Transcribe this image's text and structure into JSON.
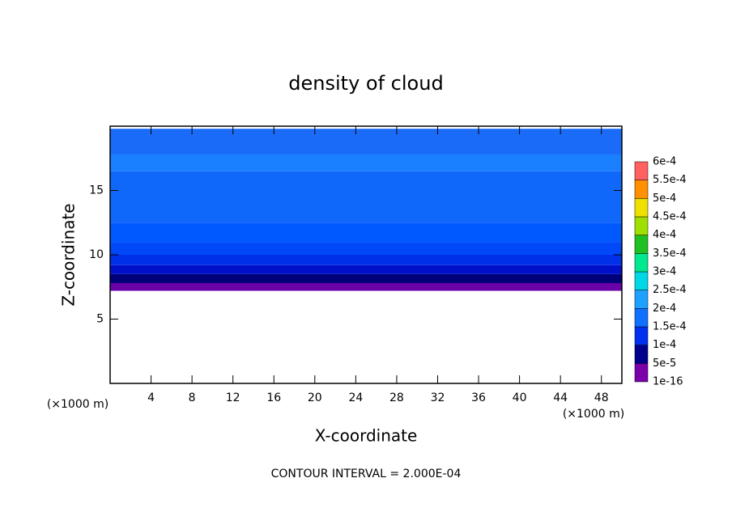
{
  "chart_data": {
    "type": "contour",
    "title": "density of cloud",
    "xlabel": "X-coordinate",
    "ylabel": "Z-coordinate",
    "x_unit": "(×1000 m)",
    "y_unit": "(×1000 m)",
    "annotation": "CONTOUR INTERVAL = 2.000E-04",
    "xlim": [
      0,
      50
    ],
    "ylim": [
      0,
      20
    ],
    "xticks": [
      4,
      8,
      12,
      16,
      20,
      24,
      28,
      32,
      36,
      40,
      44,
      48
    ],
    "yticks": [
      5,
      10,
      15
    ],
    "z_edges": [
      7.2,
      7.8,
      8.5,
      9.2,
      10,
      11,
      12.5,
      16.5,
      17.8,
      19.8
    ],
    "values": [
      3e-05,
      6e-05,
      8e-05,
      9e-05,
      0.000105,
      0.000115,
      0.000125,
      0.000145,
      0.000125
    ],
    "colors": [
      "#6a00a8",
      "#000078",
      "#0010c8",
      "#0030e8",
      "#0048f8",
      "#0058ff",
      "#1068fa",
      "#1a80ff",
      "#1a6cf8"
    ],
    "colorbar": {
      "levels": [
        {
          "value": 1e-16,
          "label": "1e-16"
        },
        {
          "value": 5e-05,
          "label": "5e-5"
        },
        {
          "value": 0.0001,
          "label": "1e-4"
        },
        {
          "value": 0.00015,
          "label": "1.5e-4"
        },
        {
          "value": 0.0002,
          "label": "2e-4"
        },
        {
          "value": 0.00025,
          "label": "2.5e-4"
        },
        {
          "value": 0.0003,
          "label": "3e-4"
        },
        {
          "value": 0.00035,
          "label": "3.5e-4"
        },
        {
          "value": 0.0004,
          "label": "4e-4"
        },
        {
          "value": 0.00045,
          "label": "4.5e-4"
        },
        {
          "value": 0.0005,
          "label": "5e-4"
        },
        {
          "value": 0.00055,
          "label": "5.5e-4"
        },
        {
          "value": 0.0006,
          "label": "6e-4"
        }
      ],
      "colors": [
        "#7a00aa",
        "#00008c",
        "#0030f0",
        "#1070ff",
        "#1ea0ff",
        "#00d8e8",
        "#00e890",
        "#20c020",
        "#a0e000",
        "#f0e000",
        "#ff9000",
        "#ff6060"
      ]
    }
  }
}
